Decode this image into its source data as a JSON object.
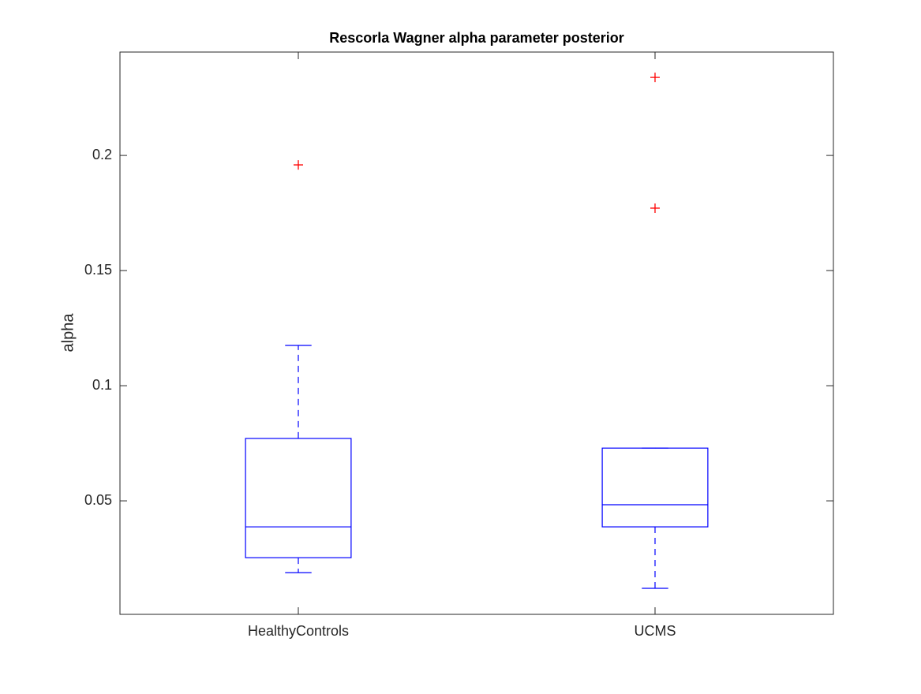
{
  "chart_data": {
    "type": "box",
    "title": "Rescorla Wagner alpha parameter posterior",
    "y_label": "alpha",
    "categories": [
      "HealthyControls",
      "UCMS"
    ],
    "whisker_low": [
      0.0188,
      0.012
    ],
    "q1": [
      0.0253,
      0.0387
    ],
    "median": [
      0.0387,
      0.0483
    ],
    "q3": [
      0.0771,
      0.0729
    ],
    "whisker_high": [
      0.1175,
      0.0729
    ],
    "outliers": [
      [
        0.1959
      ],
      [
        0.2339,
        0.1771
      ]
    ],
    "color": "#0000ff",
    "outlier_color": "#ff0000",
    "ylim": [
      0.0007,
      0.2449
    ],
    "yticks": [
      0.05,
      0.1,
      0.15,
      0.2
    ]
  }
}
